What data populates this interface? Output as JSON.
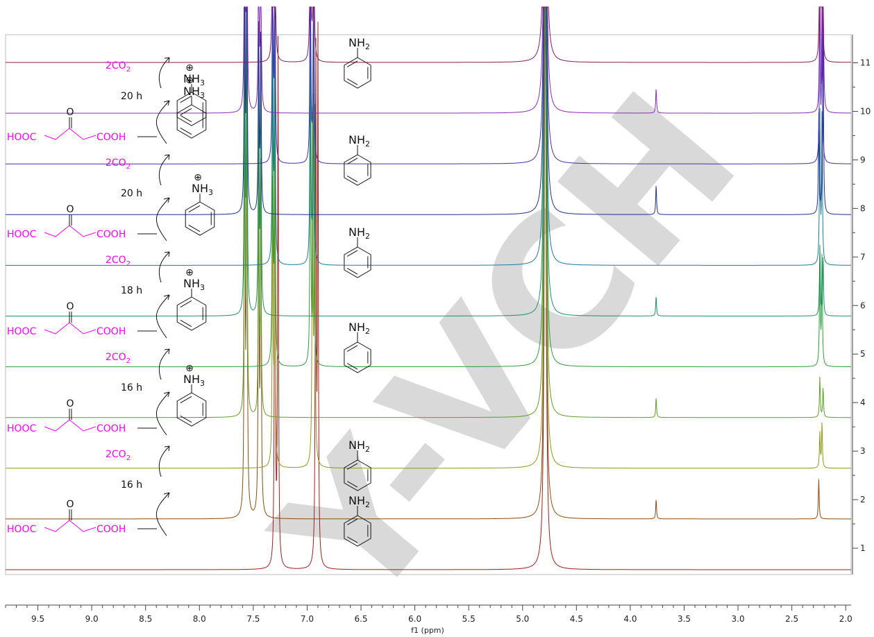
{
  "chart_data": {
    "type": "line",
    "title": "",
    "xlabel": "f1 (ppm)",
    "ylabel": "",
    "xlim": [
      9.8,
      1.95
    ],
    "x_ticks": [
      "9.5",
      "9.0",
      "8.5",
      "8.0",
      "7.5",
      "7.0",
      "6.5",
      "6.0",
      "5.5",
      "5.0",
      "4.5",
      "4.0",
      "3.5",
      "3.0",
      "2.5",
      "2.0"
    ],
    "x_tick_values": [
      9.5,
      9.0,
      8.5,
      8.0,
      7.5,
      7.0,
      6.5,
      6.0,
      5.5,
      5.0,
      4.5,
      4.0,
      3.5,
      3.0,
      2.5,
      2.0
    ],
    "stack_labels": [
      "1",
      "2",
      "3",
      "4",
      "5",
      "6",
      "7",
      "8",
      "9",
      "10",
      "11"
    ],
    "legend": "none",
    "grid": false,
    "series": [
      {
        "trace": 1,
        "kind": "aniline",
        "color": "#a11d1d",
        "peaks": [
          [
            7.3,
            10.5
          ],
          [
            7.27,
            10.5
          ],
          [
            6.92,
            10.5
          ],
          [
            6.9,
            10.5
          ],
          [
            4.79,
            12
          ]
        ]
      },
      {
        "trace": 2,
        "kind": "salt",
        "color": "#8b4a12",
        "peaks": [
          [
            7.58,
            10
          ],
          [
            7.56,
            10
          ],
          [
            7.45,
            7.5
          ],
          [
            7.43,
            7.5
          ],
          [
            4.79,
            12
          ],
          [
            3.76,
            0.4
          ],
          [
            2.25,
            0.8
          ]
        ]
      },
      {
        "trace": 3,
        "kind": "aniline",
        "color": "#8f9618",
        "peaks": [
          [
            7.32,
            6
          ],
          [
            7.3,
            6
          ],
          [
            6.95,
            7.5
          ],
          [
            6.93,
            7.5
          ],
          [
            4.79,
            12
          ],
          [
            2.24,
            0.7
          ],
          [
            2.22,
            0.9
          ]
        ]
      },
      {
        "trace": 4,
        "kind": "salt",
        "color": "#5e9e24",
        "peaks": [
          [
            7.58,
            7
          ],
          [
            7.56,
            7
          ],
          [
            7.45,
            4.5
          ],
          [
            7.43,
            4.5
          ],
          [
            4.79,
            12
          ],
          [
            3.76,
            0.4
          ],
          [
            2.24,
            0.8
          ],
          [
            2.21,
            0.6
          ]
        ]
      },
      {
        "trace": 5,
        "kind": "aniline",
        "color": "#2f9c3a",
        "peaks": [
          [
            7.32,
            6
          ],
          [
            7.3,
            6
          ],
          [
            6.97,
            6
          ],
          [
            6.94,
            6
          ],
          [
            4.79,
            12
          ],
          [
            2.24,
            2.2
          ],
          [
            2.22,
            2.2
          ]
        ]
      },
      {
        "trace": 6,
        "kind": "salt",
        "color": "#1b8f65",
        "peaks": [
          [
            7.58,
            7
          ],
          [
            7.56,
            7
          ],
          [
            7.45,
            5
          ],
          [
            7.43,
            5
          ],
          [
            4.79,
            12
          ],
          [
            3.76,
            0.4
          ],
          [
            2.24,
            1.4
          ],
          [
            2.21,
            1.2
          ]
        ]
      },
      {
        "trace": 7,
        "kind": "aniline",
        "color": "#1b7a99",
        "peaks": [
          [
            7.32,
            5.5
          ],
          [
            7.3,
            5.5
          ],
          [
            6.97,
            5.5
          ],
          [
            6.94,
            5.5
          ],
          [
            4.79,
            12
          ],
          [
            2.24,
            3
          ],
          [
            2.22,
            3
          ]
        ]
      },
      {
        "trace": 8,
        "kind": "salt",
        "color": "#1f2f8f",
        "peaks": [
          [
            7.58,
            6
          ],
          [
            7.56,
            6
          ],
          [
            7.45,
            3.8
          ],
          [
            7.43,
            3.8
          ],
          [
            4.79,
            12
          ],
          [
            3.76,
            0.6
          ],
          [
            2.25,
            2
          ],
          [
            2.21,
            4
          ]
        ]
      },
      {
        "trace": 9,
        "kind": "aniline",
        "color": "#4b2ab0",
        "peaks": [
          [
            7.32,
            5
          ],
          [
            7.3,
            5
          ],
          [
            6.97,
            5
          ],
          [
            6.94,
            5
          ],
          [
            4.79,
            12
          ],
          [
            2.24,
            3.5
          ],
          [
            2.22,
            3.5
          ]
        ]
      },
      {
        "trace": 10,
        "kind": "salt",
        "color": "#8a2ab8",
        "peaks": [
          [
            7.58,
            6
          ],
          [
            7.56,
            6
          ],
          [
            7.45,
            3.8
          ],
          [
            7.43,
            3.8
          ],
          [
            4.79,
            12
          ],
          [
            3.76,
            0.5
          ],
          [
            2.24,
            3
          ],
          [
            2.21,
            4
          ]
        ]
      },
      {
        "trace": 11,
        "kind": "aniline",
        "color": "#8a1a55",
        "peaks": [
          [
            7.32,
            5
          ],
          [
            7.3,
            5
          ],
          [
            6.97,
            5
          ],
          [
            6.94,
            5
          ],
          [
            4.79,
            12
          ],
          [
            2.24,
            3.5
          ],
          [
            2.22,
            3.8
          ]
        ]
      }
    ]
  },
  "annotations": {
    "amine_label": "NH",
    "amine_sub": "2",
    "ammonium_label": "NH",
    "ammonium_sub": "3",
    "plus_symbol": "⊕",
    "co2_label": "2CO",
    "co2_sub": "2",
    "ketone_o": "O",
    "hooc": "HOOC",
    "cooh": "COOH",
    "times": [
      "16 h",
      "16 h",
      "18 h",
      "20 h",
      "20 h"
    ]
  },
  "watermark": "Y-VCH",
  "colors": {
    "reagent": "#ff00ff",
    "axis": "#444444",
    "text": "#222222",
    "watermark": "#d9d9d9"
  }
}
